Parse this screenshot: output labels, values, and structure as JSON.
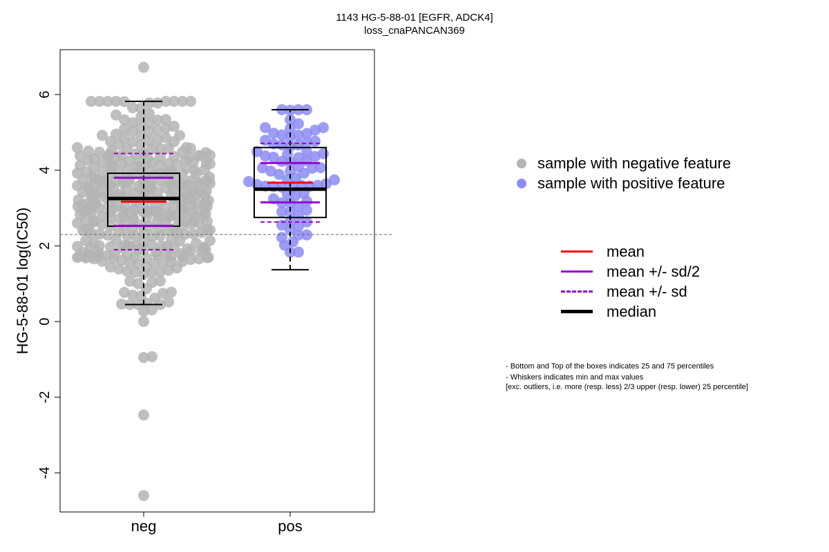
{
  "chart_data": {
    "type": "beeswarm-boxplot",
    "title": "1143 HG-5-88-01 [EGFR, ADCK4]",
    "subtitle": "loss_cnaPANCAN369",
    "ylabel": "HG-5-88-01 log(IC50)",
    "xlabel": "",
    "categories": [
      "neg",
      "pos"
    ],
    "ylim": [
      -5.0,
      7.0
    ],
    "yticks": [
      -4,
      -2,
      0,
      2,
      4,
      6
    ],
    "reference_line_y": 2.3,
    "grid": false,
    "legend_position": "right",
    "colors": {
      "neg": "#b4b4b4",
      "pos": "#8c8cf5",
      "mean": "#ff0000",
      "sd": "#9400d3",
      "median": "#000000",
      "refline": "#666666"
    },
    "groups": [
      {
        "name": "neg",
        "n": 384,
        "whisker_low": 0.45,
        "q1": 2.52,
        "median": 3.25,
        "q3": 3.92,
        "whisker_high": 5.82,
        "mean": 3.17,
        "mean_minus_half_sd": 2.53,
        "mean_plus_half_sd": 3.8,
        "mean_minus_sd": 1.9,
        "mean_plus_sd": 4.44,
        "outliers": [
          6.72,
          -0.95,
          -0.93,
          -2.47,
          -4.6,
          0.0,
          0.27,
          0.31
        ]
      },
      {
        "name": "pos",
        "n": 78,
        "whisker_low": 1.37,
        "q1": 2.75,
        "median": 3.5,
        "q3": 4.6,
        "whisker_high": 5.6,
        "mean": 3.67,
        "mean_minus_half_sd": 3.15,
        "mean_plus_half_sd": 4.19,
        "mean_minus_sd": 2.63,
        "mean_plus_sd": 4.71,
        "outliers": []
      }
    ]
  },
  "legend": {
    "points": [
      {
        "label": "sample with negative feature",
        "color": "#b4b4b4"
      },
      {
        "label": "sample with positive feature",
        "color": "#8c8cf5"
      }
    ],
    "lines": [
      {
        "label": "mean",
        "color": "#ff0000",
        "style": "solid"
      },
      {
        "label": "mean +/- sd/2",
        "color": "#9400d3",
        "style": "solid"
      },
      {
        "label": "mean +/- sd",
        "color": "#9400d3",
        "style": "dashed"
      },
      {
        "label": "median",
        "color": "#000000",
        "style": "thick"
      }
    ]
  },
  "notes": [
    "- Bottom and Top of the boxes indicates 25 and 75 percentiles",
    "- Whiskers indicates min and max values",
    "[exc. outliers, i.e. more (resp. less) 2/3 upper (resp. lower) 25 percentile]"
  ]
}
